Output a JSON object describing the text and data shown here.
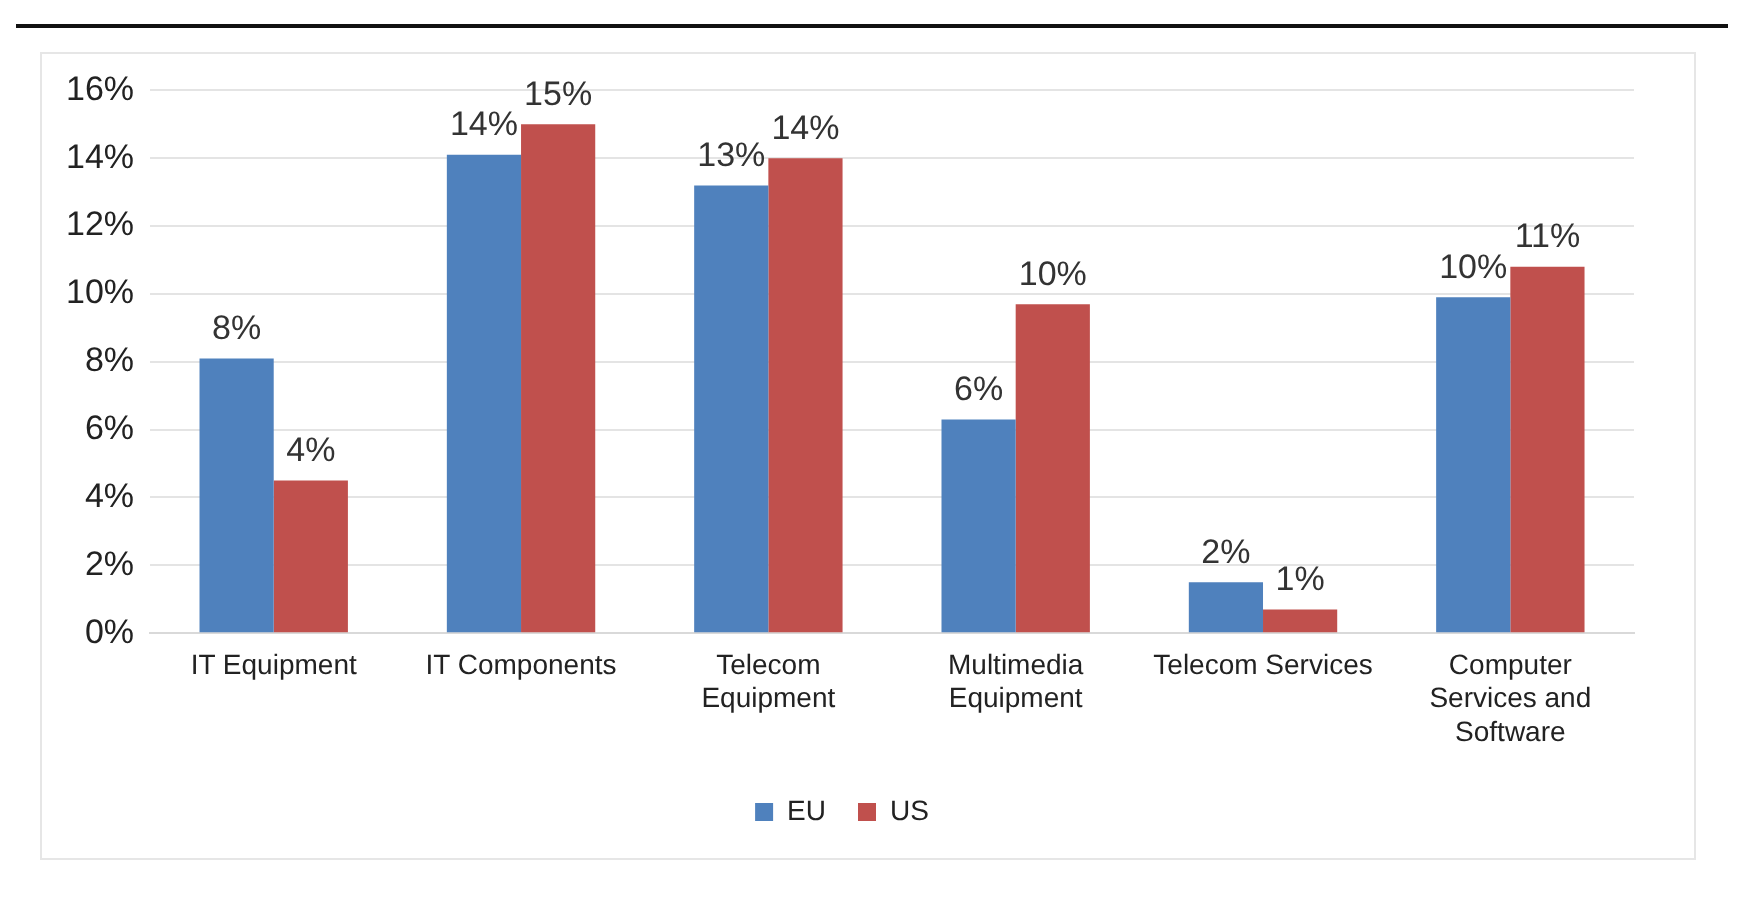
{
  "chart_data": {
    "type": "bar",
    "categories": [
      "IT Equipment",
      "IT Components",
      "Telecom Equipment",
      "Multimedia Equipment",
      "Telecom Services",
      "Computer Services and Software"
    ],
    "series": [
      {
        "name": "EU",
        "color": "#4f81bd",
        "values": [
          8.1,
          14.1,
          13.2,
          6.3,
          1.5,
          9.9
        ],
        "value_labels": [
          "8%",
          "14%",
          "13%",
          "6%",
          "2%",
          "10%"
        ]
      },
      {
        "name": "US",
        "color": "#c0504d",
        "values": [
          4.5,
          15.0,
          14.0,
          9.7,
          0.7,
          10.8
        ],
        "value_labels": [
          "4%",
          "15%",
          "14%",
          "10%",
          "1%",
          "11%"
        ]
      }
    ],
    "ylim": [
      0,
      16
    ],
    "yticks": [
      {
        "value": 0,
        "label": "0%"
      },
      {
        "value": 2,
        "label": "2%"
      },
      {
        "value": 4,
        "label": "4%"
      },
      {
        "value": 6,
        "label": "6%"
      },
      {
        "value": 8,
        "label": "8%"
      },
      {
        "value": 10,
        "label": "10%"
      },
      {
        "value": 12,
        "label": "12%"
      },
      {
        "value": 14,
        "label": "14%"
      },
      {
        "value": 16,
        "label": "16%"
      }
    ],
    "grid": "y",
    "legend": "bottom"
  }
}
